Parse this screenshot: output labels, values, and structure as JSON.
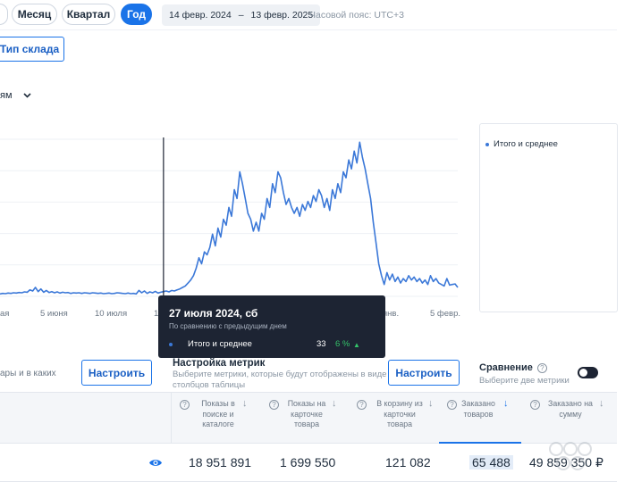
{
  "period": {
    "buttons": [
      {
        "label": "Месяц",
        "active": false
      },
      {
        "label": "Квартал",
        "active": false
      },
      {
        "label": "Год",
        "active": true
      }
    ],
    "date_from": "14 февр. 2024",
    "date_sep": "–",
    "date_to": "13 февр. 2025",
    "timezone": "Часовой пояс: UTC+3"
  },
  "toolbar": {
    "warehouse_type_label": "Тип склада",
    "grouping_label": "ям"
  },
  "chart_data": {
    "type": "line",
    "x_ticks": [
      "ая",
      "5 июня",
      "10 июля",
      "14",
      "янв.",
      "5 февр."
    ],
    "series": [
      {
        "name": "Итого и среднее",
        "color": "#3b78d8",
        "values": [
          8,
          10,
          9,
          11,
          10,
          12,
          11,
          13,
          12,
          15,
          14,
          22,
          18,
          30,
          16,
          25,
          14,
          20,
          13,
          16,
          12,
          15,
          11,
          14,
          12,
          13,
          10,
          12,
          11,
          12,
          10,
          12,
          11,
          10,
          12,
          11,
          10,
          11,
          9,
          10,
          11,
          9,
          10,
          12,
          11,
          10,
          9,
          11,
          9,
          10,
          8,
          20,
          12,
          18,
          10,
          15,
          12,
          17,
          11,
          14,
          16,
          18,
          15,
          20,
          18,
          22,
          25,
          30,
          35,
          45,
          55,
          70,
          95,
          130,
          110,
          150,
          140,
          165,
          210,
          170,
          230,
          200,
          260,
          240,
          300,
          270,
          360,
          330,
          420,
          380,
          330,
          280,
          260,
          220,
          250,
          220,
          280,
          260,
          330,
          300,
          380,
          350,
          420,
          400,
          350,
          310,
          330,
          300,
          280,
          300,
          270,
          310,
          290,
          320,
          300,
          340,
          320,
          360,
          340,
          300,
          330,
          290,
          360,
          330,
          380,
          350,
          420,
          400,
          460,
          430,
          490,
          450,
          520,
          470,
          430,
          380,
          330,
          250,
          180,
          110,
          70,
          40,
          80,
          55,
          75,
          50,
          65,
          45,
          60,
          50,
          70,
          55,
          65,
          50,
          60,
          45,
          55,
          40,
          70,
          50,
          60,
          45,
          40,
          35,
          60,
          38,
          40,
          42,
          30
        ]
      }
    ],
    "ylim": [
      0,
      530
    ],
    "marker_x_index": 60,
    "legend": "right"
  },
  "legend": {
    "label": "Итого и среднее"
  },
  "tooltip": {
    "date": "27 июля 2024, сб",
    "subtitle": "По сравнению с предыдущим днем",
    "series_name": "Итого и среднее",
    "value": "33",
    "change": "6 %"
  },
  "settings": {
    "left_text": "ары и в каких",
    "left_button": "Настроить",
    "metrics_title": "Настройка метрик",
    "metrics_desc": "Выберите метрики, которые будут отображены в виде столбцов таблицы",
    "metrics_button": "Настроить",
    "compare_title": "Сравнение",
    "compare_desc": "Выберите две метрики"
  },
  "table": {
    "columns": [
      {
        "label": "Показы в поиске и каталоге"
      },
      {
        "label": "Показы на карточке товара"
      },
      {
        "label": "В корзину из карточки товара"
      },
      {
        "label": "Заказано товаров",
        "active": true
      },
      {
        "label": "Заказано на сумму"
      }
    ],
    "row": [
      "18 951 891",
      "1 699 550",
      "121 082",
      "65 488",
      "49 859 350 ₽"
    ]
  }
}
